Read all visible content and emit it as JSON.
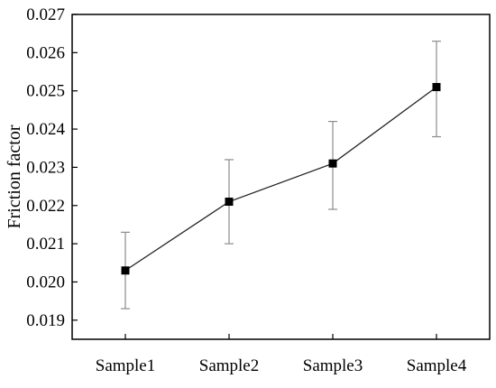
{
  "chart_data": {
    "type": "line",
    "title": "",
    "xlabel": "",
    "ylabel": "Friction factor",
    "categories": [
      "Sample1",
      "Sample2",
      "Sample3",
      "Sample4"
    ],
    "series": [
      {
        "values": [
          0.0203,
          0.0221,
          0.0231,
          0.0251
        ],
        "error_low": [
          0.0193,
          0.021,
          0.0219,
          0.0238
        ],
        "error_high": [
          0.0213,
          0.0232,
          0.0242,
          0.0263
        ]
      }
    ],
    "ylim": [
      0.0185,
      0.027
    ],
    "yticks": [
      0.019,
      0.02,
      0.021,
      0.022,
      0.023,
      0.024,
      0.025,
      0.026,
      0.027
    ],
    "ytick_labels": [
      "0.019",
      "0.020",
      "0.021",
      "0.022",
      "0.023",
      "0.024",
      "0.025",
      "0.026",
      "0.027"
    ],
    "grid": false,
    "legend": "none",
    "colors": {
      "line": "#222222",
      "marker": "#000000",
      "error_bar": "#8c8c8c",
      "axis": "#000000"
    }
  }
}
